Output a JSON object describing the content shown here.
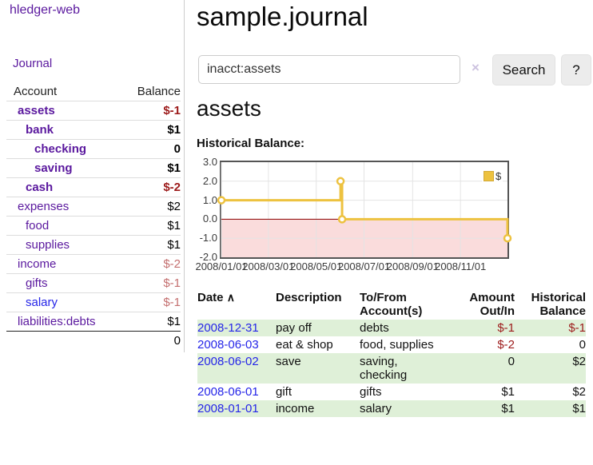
{
  "app": {
    "title": "hledger-web",
    "nav": {
      "journal": "Journal"
    }
  },
  "sidebar": {
    "columns": {
      "account": "Account",
      "balance": "Balance"
    },
    "accounts": [
      {
        "name": "assets",
        "balance": "$-1"
      },
      {
        "name": "bank",
        "balance": "$1"
      },
      {
        "name": "checking",
        "balance": "0"
      },
      {
        "name": "saving",
        "balance": "$1"
      },
      {
        "name": "cash",
        "balance": "$-2"
      },
      {
        "name": "expenses",
        "balance": "$2"
      },
      {
        "name": "food",
        "balance": "$1"
      },
      {
        "name": "supplies",
        "balance": "$1"
      },
      {
        "name": "income",
        "balance": "$-2"
      },
      {
        "name": "gifts",
        "balance": "$-1"
      },
      {
        "name": "salary",
        "balance": "$-1"
      },
      {
        "name": "liabilities:debts",
        "balance": "$1"
      }
    ],
    "total": "0"
  },
  "main": {
    "title": "sample.journal",
    "search": {
      "value": "inacct:assets",
      "clear_icon": "×",
      "search_button": "Search",
      "help_button": "?"
    },
    "account_heading": "assets",
    "chart_title": "Historical Balance:"
  },
  "chart_data": {
    "type": "line",
    "title": "Historical Balance:",
    "step": true,
    "x_range": [
      "2008-01-01",
      "2008-12-31"
    ],
    "ylim": [
      -2,
      3
    ],
    "y_ticks": [
      3.0,
      2.0,
      1.0,
      0.0,
      -1.0,
      -2.0
    ],
    "y_tick_labels": [
      "3.0",
      "2.0",
      "1.0",
      "0.0",
      "-1.0",
      "-2.0"
    ],
    "x_tick_dates": [
      "2008-01-01",
      "2008-03-01",
      "2008-05-01",
      "2008-07-01",
      "2008-09-01",
      "2008-11-01"
    ],
    "x_tick_labels": [
      "2008/01/01",
      "2008/03/01",
      "2008/05/01",
      "2008/07/01",
      "2008/09/01",
      "2008/11/01"
    ],
    "series": [
      {
        "name": "$",
        "color": "#edc240",
        "points": [
          [
            "2008-01-01",
            1
          ],
          [
            "2008-06-01",
            2
          ],
          [
            "2008-06-03",
            0
          ],
          [
            "2008-12-31",
            -1
          ]
        ]
      }
    ],
    "legend": {
      "position": "top-right",
      "entries": [
        {
          "label": "$",
          "color": "#edc240"
        }
      ]
    },
    "grid": true,
    "negative_region_color": "#fadcdc",
    "zero_line_color": "#8b0000",
    "grid_color": "#e4e4e4"
  },
  "register": {
    "headers": {
      "date": "Date",
      "sort_icon": "∧",
      "description": "Description",
      "account": "To/From\nAccount(s)",
      "amount": "Amount\nOut/In",
      "balance": "Historical\nBalance"
    },
    "rows": [
      {
        "date": "2008-12-31",
        "description": "pay off",
        "account": "debts",
        "amount": "$-1",
        "balance": "$-1"
      },
      {
        "date": "2008-06-03",
        "description": "eat & shop",
        "account": "food, supplies",
        "amount": "$-2",
        "balance": "0"
      },
      {
        "date": "2008-06-02",
        "description": "save",
        "account": "saving,\nchecking",
        "amount": "0",
        "balance": "$2"
      },
      {
        "date": "2008-06-01",
        "description": "gift",
        "account": "gifts",
        "amount": "$1",
        "balance": "$2"
      },
      {
        "date": "2008-01-01",
        "description": "income",
        "account": "salary",
        "amount": "$1",
        "balance": "$1"
      }
    ]
  }
}
